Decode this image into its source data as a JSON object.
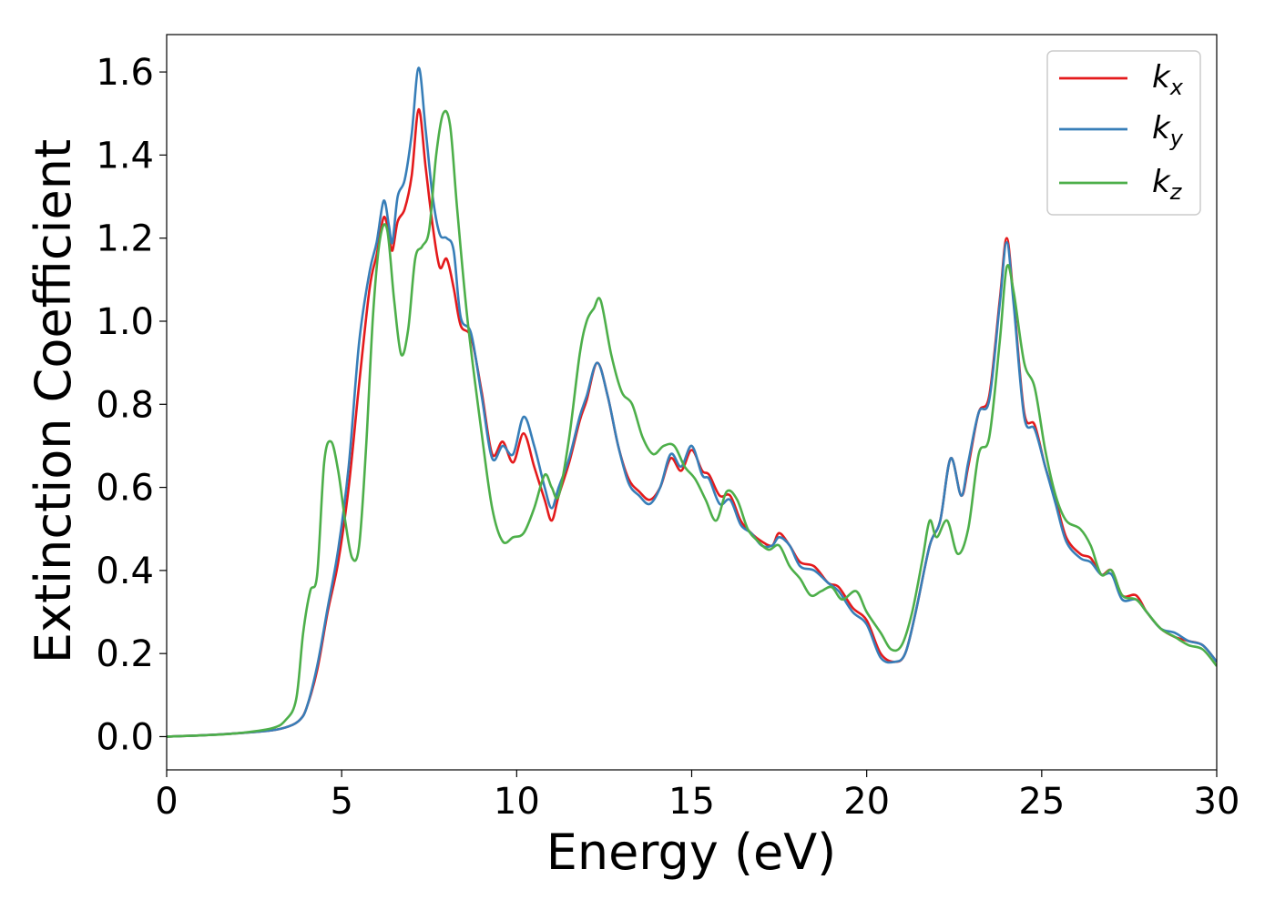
{
  "chart_data": {
    "type": "line",
    "title": "",
    "xlabel": "Energy (eV)",
    "ylabel": "Extinction Coefficient",
    "xlim": [
      0,
      30
    ],
    "ylim": [
      -0.08,
      1.69
    ],
    "x_ticks": [
      0,
      5,
      10,
      15,
      20,
      25,
      30
    ],
    "x_tick_labels": [
      "0",
      "5",
      "10",
      "15",
      "20",
      "25",
      "30"
    ],
    "y_ticks": [
      0.0,
      0.2,
      0.4,
      0.6,
      0.8,
      1.0,
      1.2,
      1.4,
      1.6
    ],
    "y_tick_labels": [
      "0.0",
      "0.2",
      "0.4",
      "0.6",
      "0.8",
      "1.0",
      "1.2",
      "1.4",
      "1.6"
    ],
    "grid": false,
    "legend_position": "top-right",
    "series": [
      {
        "name": "k",
        "subscript": "x",
        "color": "#e41a1c",
        "points": [
          [
            0,
            0.0
          ],
          [
            1,
            0.003
          ],
          [
            2,
            0.008
          ],
          [
            3,
            0.015
          ],
          [
            3.5,
            0.025
          ],
          [
            3.8,
            0.04
          ],
          [
            4.0,
            0.07
          ],
          [
            4.3,
            0.16
          ],
          [
            4.6,
            0.3
          ],
          [
            4.9,
            0.42
          ],
          [
            5.2,
            0.6
          ],
          [
            5.5,
            0.85
          ],
          [
            5.8,
            1.08
          ],
          [
            6.0,
            1.16
          ],
          [
            6.2,
            1.25
          ],
          [
            6.35,
            1.21
          ],
          [
            6.45,
            1.17
          ],
          [
            6.6,
            1.24
          ],
          [
            6.8,
            1.27
          ],
          [
            7.0,
            1.35
          ],
          [
            7.2,
            1.51
          ],
          [
            7.4,
            1.37
          ],
          [
            7.6,
            1.23
          ],
          [
            7.8,
            1.13
          ],
          [
            8.0,
            1.15
          ],
          [
            8.2,
            1.08
          ],
          [
            8.4,
            0.99
          ],
          [
            8.7,
            0.96
          ],
          [
            9.0,
            0.83
          ],
          [
            9.3,
            0.68
          ],
          [
            9.6,
            0.71
          ],
          [
            9.9,
            0.66
          ],
          [
            10.2,
            0.73
          ],
          [
            10.5,
            0.65
          ],
          [
            10.8,
            0.57
          ],
          [
            11.0,
            0.52
          ],
          [
            11.2,
            0.58
          ],
          [
            11.5,
            0.66
          ],
          [
            11.8,
            0.76
          ],
          [
            12.0,
            0.81
          ],
          [
            12.3,
            0.9
          ],
          [
            12.6,
            0.82
          ],
          [
            12.9,
            0.7
          ],
          [
            13.2,
            0.62
          ],
          [
            13.5,
            0.59
          ],
          [
            13.8,
            0.57
          ],
          [
            14.1,
            0.6
          ],
          [
            14.4,
            0.67
          ],
          [
            14.7,
            0.64
          ],
          [
            15.0,
            0.69
          ],
          [
            15.3,
            0.64
          ],
          [
            15.5,
            0.63
          ],
          [
            15.8,
            0.58
          ],
          [
            16.1,
            0.58
          ],
          [
            16.4,
            0.52
          ],
          [
            16.7,
            0.49
          ],
          [
            17.0,
            0.47
          ],
          [
            17.3,
            0.46
          ],
          [
            17.5,
            0.49
          ],
          [
            17.8,
            0.46
          ],
          [
            18.1,
            0.42
          ],
          [
            18.5,
            0.41
          ],
          [
            18.9,
            0.37
          ],
          [
            19.2,
            0.36
          ],
          [
            19.6,
            0.31
          ],
          [
            20.0,
            0.28
          ],
          [
            20.4,
            0.2
          ],
          [
            20.8,
            0.18
          ],
          [
            21.1,
            0.2
          ],
          [
            21.4,
            0.3
          ],
          [
            21.8,
            0.46
          ],
          [
            22.1,
            0.52
          ],
          [
            22.4,
            0.67
          ],
          [
            22.7,
            0.58
          ],
          [
            22.9,
            0.65
          ],
          [
            23.2,
            0.78
          ],
          [
            23.5,
            0.82
          ],
          [
            23.8,
            1.05
          ],
          [
            24.0,
            1.2
          ],
          [
            24.2,
            1.05
          ],
          [
            24.5,
            0.78
          ],
          [
            24.8,
            0.75
          ],
          [
            25.1,
            0.65
          ],
          [
            25.4,
            0.57
          ],
          [
            25.7,
            0.48
          ],
          [
            26.1,
            0.44
          ],
          [
            26.4,
            0.43
          ],
          [
            26.7,
            0.39
          ],
          [
            27.0,
            0.4
          ],
          [
            27.3,
            0.34
          ],
          [
            27.7,
            0.34
          ],
          [
            28.0,
            0.3
          ],
          [
            28.4,
            0.26
          ],
          [
            28.8,
            0.24
          ],
          [
            29.2,
            0.23
          ],
          [
            29.6,
            0.22
          ],
          [
            30.0,
            0.18
          ]
        ]
      },
      {
        "name": "k",
        "subscript": "y",
        "color": "#377eb8",
        "points": [
          [
            0,
            0.0
          ],
          [
            1,
            0.003
          ],
          [
            2,
            0.008
          ],
          [
            3,
            0.015
          ],
          [
            3.5,
            0.025
          ],
          [
            3.8,
            0.04
          ],
          [
            4.0,
            0.07
          ],
          [
            4.3,
            0.17
          ],
          [
            4.6,
            0.31
          ],
          [
            4.9,
            0.45
          ],
          [
            5.2,
            0.65
          ],
          [
            5.5,
            0.95
          ],
          [
            5.8,
            1.12
          ],
          [
            6.0,
            1.19
          ],
          [
            6.2,
            1.29
          ],
          [
            6.35,
            1.23
          ],
          [
            6.45,
            1.19
          ],
          [
            6.6,
            1.3
          ],
          [
            6.8,
            1.34
          ],
          [
            7.0,
            1.45
          ],
          [
            7.2,
            1.61
          ],
          [
            7.4,
            1.46
          ],
          [
            7.6,
            1.3
          ],
          [
            7.8,
            1.21
          ],
          [
            8.0,
            1.2
          ],
          [
            8.2,
            1.17
          ],
          [
            8.4,
            1.01
          ],
          [
            8.7,
            0.97
          ],
          [
            9.0,
            0.82
          ],
          [
            9.3,
            0.67
          ],
          [
            9.6,
            0.7
          ],
          [
            9.9,
            0.68
          ],
          [
            10.2,
            0.77
          ],
          [
            10.5,
            0.7
          ],
          [
            10.8,
            0.6
          ],
          [
            11.0,
            0.55
          ],
          [
            11.2,
            0.6
          ],
          [
            11.5,
            0.67
          ],
          [
            11.8,
            0.77
          ],
          [
            12.0,
            0.82
          ],
          [
            12.3,
            0.9
          ],
          [
            12.6,
            0.82
          ],
          [
            12.9,
            0.7
          ],
          [
            13.2,
            0.61
          ],
          [
            13.5,
            0.58
          ],
          [
            13.8,
            0.56
          ],
          [
            14.1,
            0.6
          ],
          [
            14.4,
            0.68
          ],
          [
            14.7,
            0.65
          ],
          [
            15.0,
            0.7
          ],
          [
            15.3,
            0.63
          ],
          [
            15.5,
            0.62
          ],
          [
            15.8,
            0.56
          ],
          [
            16.1,
            0.57
          ],
          [
            16.4,
            0.51
          ],
          [
            16.7,
            0.49
          ],
          [
            17.0,
            0.46
          ],
          [
            17.3,
            0.46
          ],
          [
            17.5,
            0.48
          ],
          [
            17.8,
            0.46
          ],
          [
            18.1,
            0.41
          ],
          [
            18.5,
            0.4
          ],
          [
            18.9,
            0.37
          ],
          [
            19.2,
            0.35
          ],
          [
            19.6,
            0.3
          ],
          [
            20.0,
            0.27
          ],
          [
            20.4,
            0.19
          ],
          [
            20.8,
            0.18
          ],
          [
            21.1,
            0.2
          ],
          [
            21.4,
            0.3
          ],
          [
            21.8,
            0.46
          ],
          [
            22.1,
            0.52
          ],
          [
            22.4,
            0.67
          ],
          [
            22.7,
            0.58
          ],
          [
            22.9,
            0.66
          ],
          [
            23.2,
            0.78
          ],
          [
            23.5,
            0.81
          ],
          [
            23.8,
            1.04
          ],
          [
            24.0,
            1.19
          ],
          [
            24.2,
            1.04
          ],
          [
            24.5,
            0.77
          ],
          [
            24.8,
            0.74
          ],
          [
            25.1,
            0.65
          ],
          [
            25.4,
            0.56
          ],
          [
            25.7,
            0.47
          ],
          [
            26.1,
            0.43
          ],
          [
            26.4,
            0.42
          ],
          [
            26.7,
            0.39
          ],
          [
            27.0,
            0.39
          ],
          [
            27.3,
            0.33
          ],
          [
            27.7,
            0.33
          ],
          [
            28.0,
            0.3
          ],
          [
            28.4,
            0.26
          ],
          [
            28.8,
            0.25
          ],
          [
            29.2,
            0.23
          ],
          [
            29.6,
            0.22
          ],
          [
            30.0,
            0.18
          ]
        ]
      },
      {
        "name": "k",
        "subscript": "z",
        "color": "#4daf4a",
        "points": [
          [
            0,
            0.0
          ],
          [
            1,
            0.003
          ],
          [
            2,
            0.008
          ],
          [
            3,
            0.02
          ],
          [
            3.4,
            0.04
          ],
          [
            3.7,
            0.09
          ],
          [
            3.9,
            0.25
          ],
          [
            4.1,
            0.35
          ],
          [
            4.3,
            0.39
          ],
          [
            4.5,
            0.66
          ],
          [
            4.7,
            0.71
          ],
          [
            4.9,
            0.64
          ],
          [
            5.1,
            0.52
          ],
          [
            5.3,
            0.43
          ],
          [
            5.5,
            0.46
          ],
          [
            5.7,
            0.7
          ],
          [
            5.9,
            1.02
          ],
          [
            6.1,
            1.2
          ],
          [
            6.3,
            1.22
          ],
          [
            6.5,
            1.05
          ],
          [
            6.7,
            0.92
          ],
          [
            6.9,
            0.98
          ],
          [
            7.1,
            1.15
          ],
          [
            7.3,
            1.18
          ],
          [
            7.5,
            1.22
          ],
          [
            7.7,
            1.4
          ],
          [
            7.9,
            1.5
          ],
          [
            8.1,
            1.47
          ],
          [
            8.3,
            1.27
          ],
          [
            8.6,
            1.0
          ],
          [
            9.0,
            0.73
          ],
          [
            9.3,
            0.55
          ],
          [
            9.6,
            0.47
          ],
          [
            9.9,
            0.48
          ],
          [
            10.2,
            0.49
          ],
          [
            10.5,
            0.55
          ],
          [
            10.8,
            0.63
          ],
          [
            11.0,
            0.6
          ],
          [
            11.2,
            0.58
          ],
          [
            11.5,
            0.72
          ],
          [
            11.8,
            0.92
          ],
          [
            12.0,
            1.0
          ],
          [
            12.2,
            1.03
          ],
          [
            12.4,
            1.05
          ],
          [
            12.7,
            0.92
          ],
          [
            13.0,
            0.83
          ],
          [
            13.3,
            0.8
          ],
          [
            13.6,
            0.72
          ],
          [
            13.9,
            0.68
          ],
          [
            14.2,
            0.7
          ],
          [
            14.5,
            0.7
          ],
          [
            14.8,
            0.65
          ],
          [
            15.1,
            0.62
          ],
          [
            15.4,
            0.57
          ],
          [
            15.7,
            0.52
          ],
          [
            16.0,
            0.59
          ],
          [
            16.3,
            0.57
          ],
          [
            16.6,
            0.5
          ],
          [
            16.9,
            0.47
          ],
          [
            17.2,
            0.45
          ],
          [
            17.5,
            0.46
          ],
          [
            17.8,
            0.41
          ],
          [
            18.1,
            0.38
          ],
          [
            18.4,
            0.34
          ],
          [
            18.7,
            0.35
          ],
          [
            19.0,
            0.36
          ],
          [
            19.3,
            0.33
          ],
          [
            19.7,
            0.35
          ],
          [
            20.0,
            0.3
          ],
          [
            20.4,
            0.25
          ],
          [
            20.7,
            0.21
          ],
          [
            21.0,
            0.22
          ],
          [
            21.3,
            0.3
          ],
          [
            21.6,
            0.43
          ],
          [
            21.8,
            0.52
          ],
          [
            22.0,
            0.48
          ],
          [
            22.3,
            0.52
          ],
          [
            22.6,
            0.44
          ],
          [
            22.9,
            0.5
          ],
          [
            23.2,
            0.68
          ],
          [
            23.5,
            0.72
          ],
          [
            23.8,
            0.95
          ],
          [
            24.0,
            1.13
          ],
          [
            24.2,
            1.07
          ],
          [
            24.5,
            0.9
          ],
          [
            24.8,
            0.84
          ],
          [
            25.1,
            0.69
          ],
          [
            25.4,
            0.58
          ],
          [
            25.7,
            0.52
          ],
          [
            26.1,
            0.5
          ],
          [
            26.4,
            0.46
          ],
          [
            26.7,
            0.39
          ],
          [
            27.0,
            0.4
          ],
          [
            27.3,
            0.34
          ],
          [
            27.7,
            0.33
          ],
          [
            28.0,
            0.3
          ],
          [
            28.4,
            0.26
          ],
          [
            28.8,
            0.24
          ],
          [
            29.2,
            0.22
          ],
          [
            29.6,
            0.21
          ],
          [
            30.0,
            0.17
          ]
        ]
      }
    ]
  }
}
